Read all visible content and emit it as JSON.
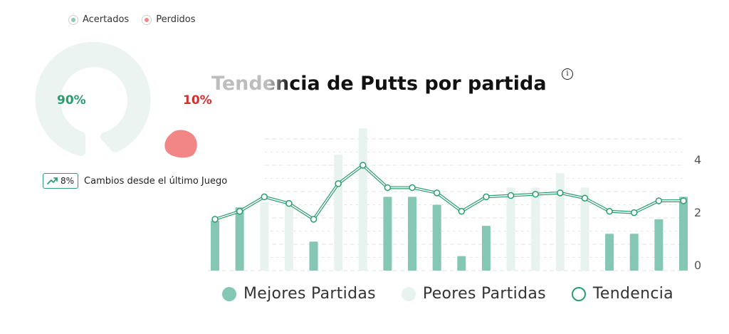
{
  "donut": {
    "legend": [
      {
        "label": "Acertados",
        "color": "#8cc9b4"
      },
      {
        "label": "Perdidos",
        "color": "#f28686"
      }
    ],
    "hit_percent_label": "90%",
    "miss_percent_label": "10%",
    "hit_fraction": 0.9,
    "miss_fraction": 0.1,
    "colors": {
      "hit_ring": "#ebf4f1",
      "miss_blob": "#f28686",
      "hit_text": "#2a9d6f",
      "miss_text": "#d32f2f"
    }
  },
  "change": {
    "value": "8%",
    "text": "Cambios desde el último Juego",
    "icon": "trending-up-icon",
    "color": "#2f9e75"
  },
  "chart": {
    "title": "Tendencia de Putts por partida",
    "info_icon": "info-icon",
    "legend": {
      "best": "Mejores Partidas",
      "worst": "Peores Partidas",
      "trend": "Tendencia"
    },
    "colors": {
      "best": "#84c7b4",
      "worst": "#e8f3f0",
      "trend": "#2a9d6f",
      "grid": "#e3e3e3"
    }
  },
  "chart_data": {
    "type": "bar",
    "title": "Tendencia de Putts por partida",
    "y_ticks": [
      0,
      2,
      4
    ],
    "ylim": [
      0,
      5.2
    ],
    "grid": true,
    "legend_position": "bottom",
    "series": [
      {
        "name": "Mejores Partidas",
        "type": "bar",
        "values": [
          1.9,
          2.4,
          null,
          null,
          1.1,
          null,
          null,
          2.8,
          2.8,
          2.5,
          0.55,
          1.7,
          null,
          null,
          null,
          null,
          1.4,
          1.4,
          1.95,
          2.8
        ]
      },
      {
        "name": "Peores Partidas",
        "type": "bar",
        "values": [
          null,
          null,
          2.6,
          2.6,
          null,
          4.4,
          5.4,
          null,
          null,
          null,
          null,
          null,
          3.15,
          3.15,
          3.7,
          3.15,
          null,
          null,
          null,
          null
        ]
      },
      {
        "name": "Tendencia",
        "type": "line",
        "values": [
          1.95,
          2.25,
          2.8,
          2.55,
          1.95,
          3.3,
          4.0,
          3.15,
          3.15,
          2.95,
          2.25,
          2.8,
          2.85,
          2.9,
          2.95,
          2.75,
          2.25,
          2.2,
          2.65,
          2.65
        ]
      }
    ]
  }
}
